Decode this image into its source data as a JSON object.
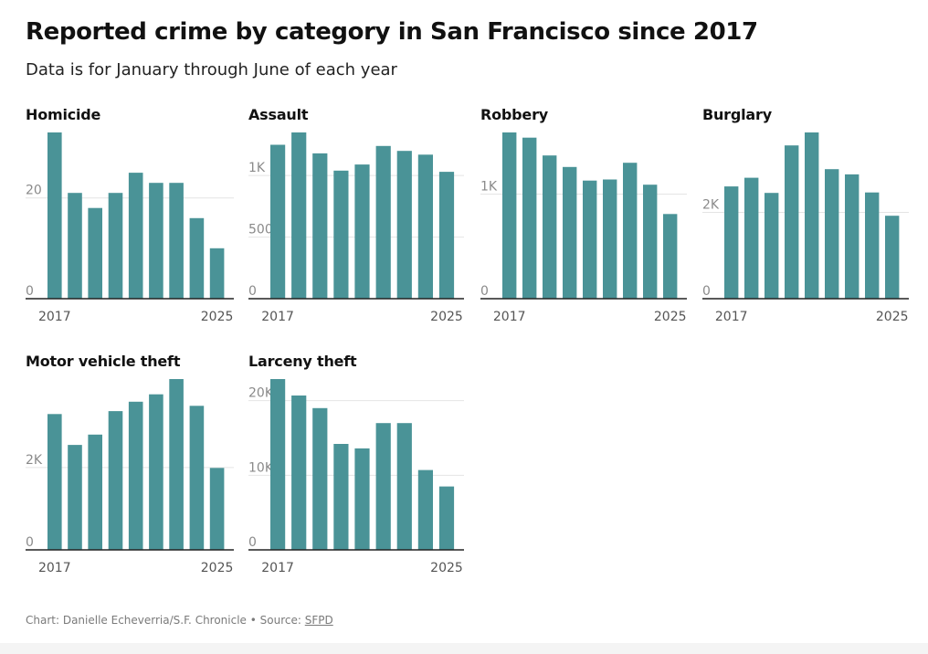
{
  "header": {
    "title": "Reported crime by category in San Francisco since 2017",
    "subtitle": "Data is for January through June of each year"
  },
  "footer": {
    "credit": "Chart: Danielle Echeverria/S.F. Chronicle",
    "separator": " • ",
    "source_label": "Source: ",
    "source_link": "SFPD"
  },
  "colors": {
    "bar": "#4a9397",
    "grid": "#e4e4e4",
    "axis": "#222222"
  },
  "chart_data": [
    {
      "type": "bar",
      "title": "Homicide",
      "x": [
        2017,
        2018,
        2019,
        2020,
        2021,
        2022,
        2023,
        2024,
        2025
      ],
      "values": [
        33,
        21,
        18,
        21,
        25,
        23,
        23,
        16,
        10
      ],
      "ylim": [
        0,
        33
      ],
      "yticks": [
        0,
        20
      ],
      "ytick_labels": [
        "0",
        "20"
      ],
      "xtick_labels": [
        "2017",
        "2025"
      ],
      "grid": true
    },
    {
      "type": "bar",
      "title": "Assault",
      "x": [
        2017,
        2018,
        2019,
        2020,
        2021,
        2022,
        2023,
        2024,
        2025
      ],
      "values": [
        1250,
        1350,
        1180,
        1040,
        1090,
        1240,
        1200,
        1170,
        1030
      ],
      "ylim": [
        0,
        1350
      ],
      "yticks": [
        0,
        500,
        1000
      ],
      "ytick_labels": [
        "0",
        "500",
        "1K"
      ],
      "xtick_labels": [
        "2017",
        "2025"
      ],
      "grid": true
    },
    {
      "type": "bar",
      "title": "Robbery",
      "x": [
        2017,
        2018,
        2019,
        2020,
        2021,
        2022,
        2023,
        2024,
        2025
      ],
      "values": [
        1590,
        1540,
        1370,
        1260,
        1130,
        1140,
        1300,
        1090,
        810
      ],
      "ylim": [
        0,
        1590
      ],
      "yticks": [
        0,
        1000
      ],
      "ytick_labels": [
        "0",
        "1K"
      ],
      "xtick_labels": [
        "2017",
        "2025"
      ],
      "grid": true
    },
    {
      "type": "bar",
      "title": "Burglary",
      "x": [
        2017,
        2018,
        2019,
        2020,
        2021,
        2022,
        2023,
        2024,
        2025
      ],
      "values": [
        2600,
        2800,
        2450,
        3550,
        3850,
        3000,
        2880,
        2460,
        1920
      ],
      "ylim": [
        0,
        3850
      ],
      "yticks": [
        0,
        2000
      ],
      "ytick_labels": [
        "0",
        "2K"
      ],
      "xtick_labels": [
        "2017",
        "2025"
      ],
      "grid": true
    },
    {
      "type": "bar",
      "title": "Motor vehicle theft",
      "x": [
        2017,
        2018,
        2019,
        2020,
        2021,
        2022,
        2023,
        2024,
        2025
      ],
      "values": [
        3300,
        2550,
        2800,
        3370,
        3600,
        3780,
        4150,
        3500,
        1990
      ],
      "ylim": [
        0,
        4150
      ],
      "yticks": [
        0,
        2000
      ],
      "ytick_labels": [
        "0",
        "2K"
      ],
      "xtick_labels": [
        "2017",
        "2025"
      ],
      "grid": true
    },
    {
      "type": "bar",
      "title": "Larceny theft",
      "x": [
        2017,
        2018,
        2019,
        2020,
        2021,
        2022,
        2023,
        2024,
        2025
      ],
      "values": [
        22900,
        20700,
        19000,
        14200,
        13600,
        17000,
        17000,
        10700,
        8500
      ],
      "ylim": [
        0,
        22900
      ],
      "yticks": [
        0,
        10000,
        20000
      ],
      "ytick_labels": [
        "0",
        "10K",
        "20K"
      ],
      "xtick_labels": [
        "2017",
        "2025"
      ],
      "grid": true
    }
  ]
}
